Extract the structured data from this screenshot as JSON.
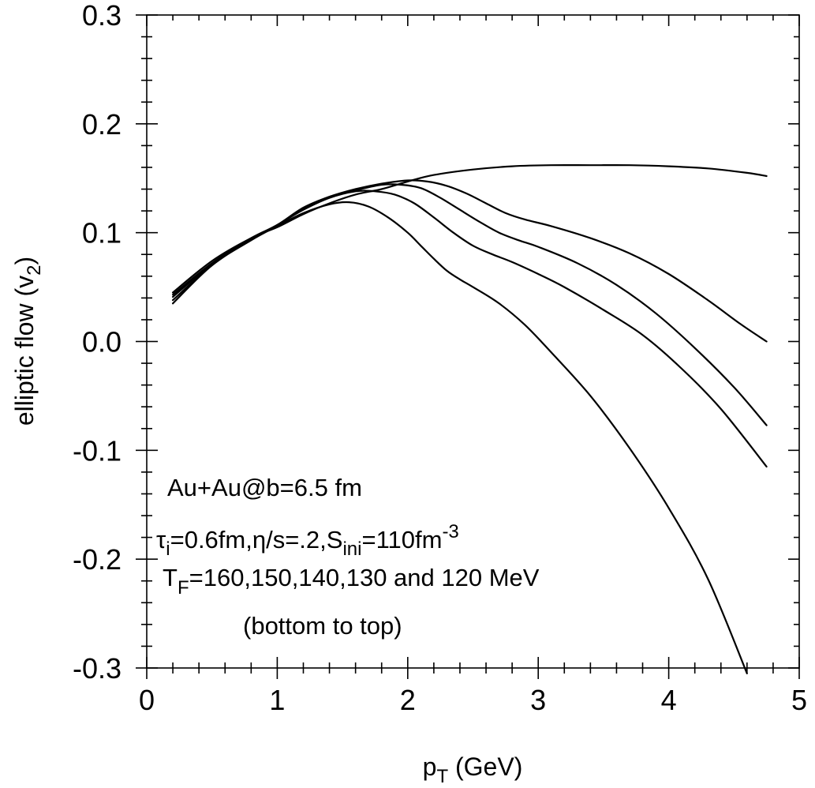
{
  "chart_data": {
    "type": "line",
    "xlabel": {
      "main": "p",
      "sub": "T",
      "rest": " (GeV)"
    },
    "ylabel": {
      "main": "elliptic flow (v",
      "sub": "2",
      "rest": ")"
    },
    "xlim": [
      0,
      5
    ],
    "ylim": [
      -0.3,
      0.3
    ],
    "x_ticks": [
      0,
      1,
      2,
      3,
      4,
      5
    ],
    "x_tick_labels": [
      "0",
      "1",
      "2",
      "3",
      "4",
      "5"
    ],
    "y_ticks": [
      0.3,
      0.2,
      0.1,
      0.0,
      -0.1,
      -0.2,
      -0.3
    ],
    "y_tick_labels": [
      "0.3",
      "0.2",
      "0.1",
      "0.0",
      "-0.1",
      "-0.2",
      "-0.3"
    ],
    "grid": false,
    "annotation": {
      "line1": "Au+Au@b=6.5 fm",
      "line2": {
        "p1": "τ",
        "s1": "i",
        "p2": "=0.6fm,η/s=.2,S",
        "s2": "ini",
        "p3": "=110fm",
        "sup": "-3"
      },
      "line3": {
        "p1": "T",
        "s1": "F",
        "p2": "=160,150,140,130 and 120 MeV"
      },
      "line4": "(bottom to top)"
    },
    "series": [
      {
        "x": [
          0.2,
          0.5,
          0.8,
          1.0,
          1.2,
          1.4,
          1.55,
          1.7,
          1.85,
          2.0,
          2.1,
          2.2,
          2.3,
          2.4,
          2.5,
          2.7,
          2.9,
          3.1,
          3.4,
          3.7,
          4.0,
          4.3,
          4.6
        ],
        "y": [
          0.035,
          0.07,
          0.093,
          0.106,
          0.118,
          0.126,
          0.128,
          0.124,
          0.114,
          0.1,
          0.088,
          0.076,
          0.065,
          0.057,
          0.05,
          0.035,
          0.015,
          -0.01,
          -0.05,
          -0.098,
          -0.153,
          -0.218,
          -0.305
        ]
      },
      {
        "x": [
          0.2,
          0.5,
          0.8,
          1.0,
          1.2,
          1.4,
          1.6,
          1.75,
          1.9,
          2.05,
          2.2,
          2.35,
          2.5,
          2.65,
          2.8,
          3.0,
          3.2,
          3.5,
          3.8,
          4.1,
          4.4,
          4.75
        ],
        "y": [
          0.038,
          0.07,
          0.094,
          0.107,
          0.121,
          0.132,
          0.138,
          0.138,
          0.135,
          0.127,
          0.114,
          0.1,
          0.088,
          0.08,
          0.073,
          0.062,
          0.05,
          0.029,
          0.006,
          -0.025,
          -0.062,
          -0.115
        ]
      },
      {
        "x": [
          0.2,
          0.5,
          0.8,
          1.0,
          1.2,
          1.4,
          1.6,
          1.8,
          1.95,
          2.1,
          2.25,
          2.4,
          2.55,
          2.7,
          2.85,
          3.0,
          3.3,
          3.6,
          3.9,
          4.2,
          4.5,
          4.75
        ],
        "y": [
          0.041,
          0.071,
          0.094,
          0.107,
          0.122,
          0.133,
          0.139,
          0.144,
          0.144,
          0.141,
          0.132,
          0.121,
          0.11,
          0.1,
          0.093,
          0.087,
          0.072,
          0.052,
          0.026,
          -0.006,
          -0.042,
          -0.077
        ]
      },
      {
        "x": [
          0.2,
          0.5,
          0.8,
          1.0,
          1.2,
          1.4,
          1.6,
          1.8,
          2.0,
          2.15,
          2.3,
          2.45,
          2.6,
          2.75,
          2.9,
          3.1,
          3.4,
          3.7,
          4.0,
          4.3,
          4.55,
          4.75
        ],
        "y": [
          0.043,
          0.072,
          0.095,
          0.107,
          0.123,
          0.133,
          0.14,
          0.145,
          0.148,
          0.147,
          0.143,
          0.136,
          0.127,
          0.118,
          0.112,
          0.106,
          0.095,
          0.081,
          0.062,
          0.038,
          0.016,
          0.0
        ]
      },
      {
        "x": [
          0.2,
          0.5,
          0.8,
          1.0,
          1.2,
          1.4,
          1.6,
          1.8,
          2.0,
          2.2,
          2.5,
          2.8,
          3.1,
          3.4,
          3.7,
          4.0,
          4.3,
          4.6,
          4.75
        ],
        "y": [
          0.045,
          0.074,
          0.095,
          0.105,
          0.117,
          0.127,
          0.135,
          0.14,
          0.147,
          0.153,
          0.158,
          0.161,
          0.162,
          0.162,
          0.162,
          0.161,
          0.159,
          0.155,
          0.152
        ]
      }
    ]
  }
}
